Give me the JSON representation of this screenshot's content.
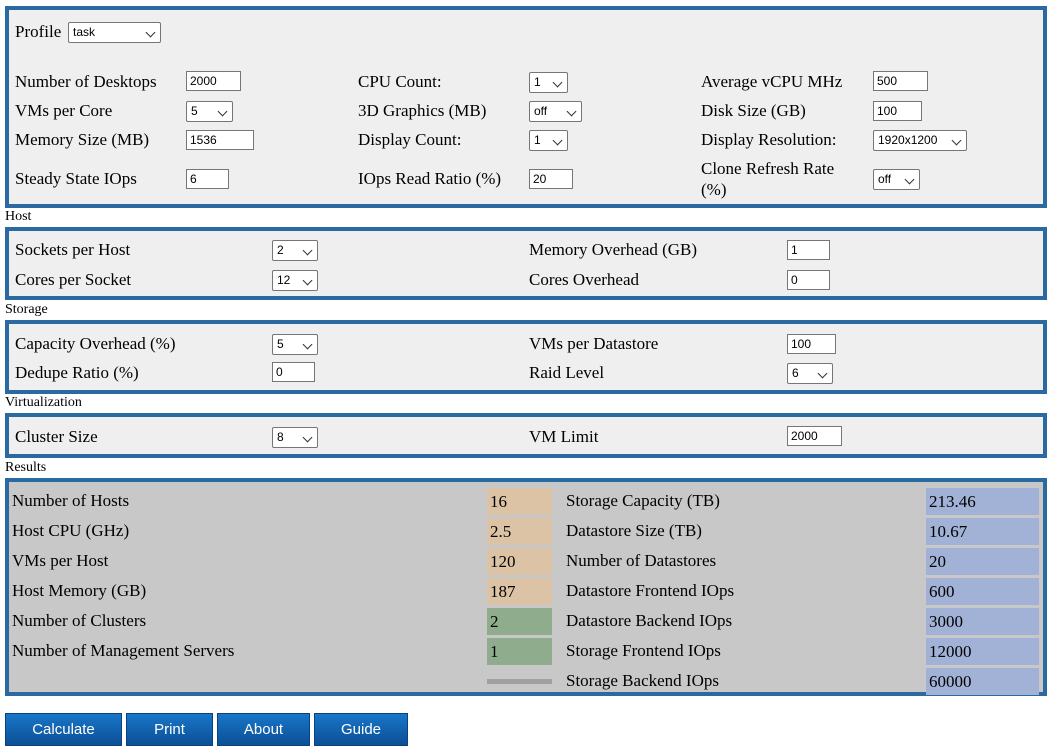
{
  "profile": {
    "label": "Profile",
    "value": "task"
  },
  "desktop": {
    "num_desktops": {
      "label": "Number of Desktops",
      "value": "2000"
    },
    "vms_per_core": {
      "label": "VMs per Core",
      "value": "5"
    },
    "memory_size": {
      "label": "Memory Size (MB)",
      "value": "1536"
    },
    "steady_iops": {
      "label": "Steady State IOps",
      "value": "6"
    },
    "cpu_count": {
      "label": "CPU Count:",
      "value": "1"
    },
    "graphics_3d": {
      "label": "3D Graphics (MB)",
      "value": "off"
    },
    "display_count": {
      "label": "Display Count:",
      "value": "1"
    },
    "iops_read_ratio": {
      "label": "IOps Read Ratio (%)",
      "value": "20"
    },
    "avg_vcpu_mhz": {
      "label": "Average vCPU MHz",
      "value": "500"
    },
    "disk_size": {
      "label": "Disk Size (GB)",
      "value": "100"
    },
    "display_resolution": {
      "label": "Display Resolution:",
      "value": "1920x1200"
    },
    "clone_refresh_rate": {
      "label": "Clone Refresh Rate (%)",
      "value": "off"
    }
  },
  "host": {
    "title": "Host",
    "sockets_per_host": {
      "label": "Sockets per Host",
      "value": "2"
    },
    "cores_per_socket": {
      "label": "Cores per Socket",
      "value": "12"
    },
    "memory_overhead": {
      "label": "Memory Overhead (GB)",
      "value": "1"
    },
    "cores_overhead": {
      "label": "Cores Overhead",
      "value": "0"
    }
  },
  "storage": {
    "title": "Storage",
    "capacity_overhead": {
      "label": "Capacity Overhead (%)",
      "value": "5"
    },
    "dedupe_ratio": {
      "label": "Dedupe Ratio (%)",
      "value": "0"
    },
    "vms_per_datastore": {
      "label": "VMs per Datastore",
      "value": "100"
    },
    "raid_level": {
      "label": "Raid Level",
      "value": "6"
    }
  },
  "virtualization": {
    "title": "Virtualization",
    "cluster_size": {
      "label": "Cluster Size",
      "value": "8"
    },
    "vm_limit": {
      "label": "VM Limit",
      "value": "2000"
    }
  },
  "results": {
    "title": "Results",
    "left": [
      {
        "label": "Number of Hosts",
        "value": "16"
      },
      {
        "label": "Host CPU (GHz)",
        "value": "2.5"
      },
      {
        "label": "VMs per Host",
        "value": "120"
      },
      {
        "label": "Host Memory (GB)",
        "value": "187"
      },
      {
        "label": "Number of Clusters",
        "value": "2"
      },
      {
        "label": "Number of Management Servers",
        "value": "1"
      }
    ],
    "right": [
      {
        "label": "Storage Capacity (TB)",
        "value": "213.46"
      },
      {
        "label": "Datastore Size (TB)",
        "value": "10.67"
      },
      {
        "label": "Number of Datastores",
        "value": "20"
      },
      {
        "label": "Datastore Frontend IOps",
        "value": "600"
      },
      {
        "label": "Datastore Backend IOps",
        "value": "3000"
      },
      {
        "label": "Storage Frontend IOps",
        "value": "12000"
      },
      {
        "label": "Storage Backend IOps",
        "value": "60000"
      }
    ]
  },
  "buttons": {
    "calculate": "Calculate",
    "print": "Print",
    "about": "About",
    "guide": "Guide"
  },
  "colors": {
    "border": "#2a6aa0",
    "panel": "#efefef",
    "results_panel": "#c8c8c8",
    "tan": "#dcc3a5",
    "green": "#8fac8d",
    "blue": "#a1b2d6",
    "button": "#1565b5"
  }
}
